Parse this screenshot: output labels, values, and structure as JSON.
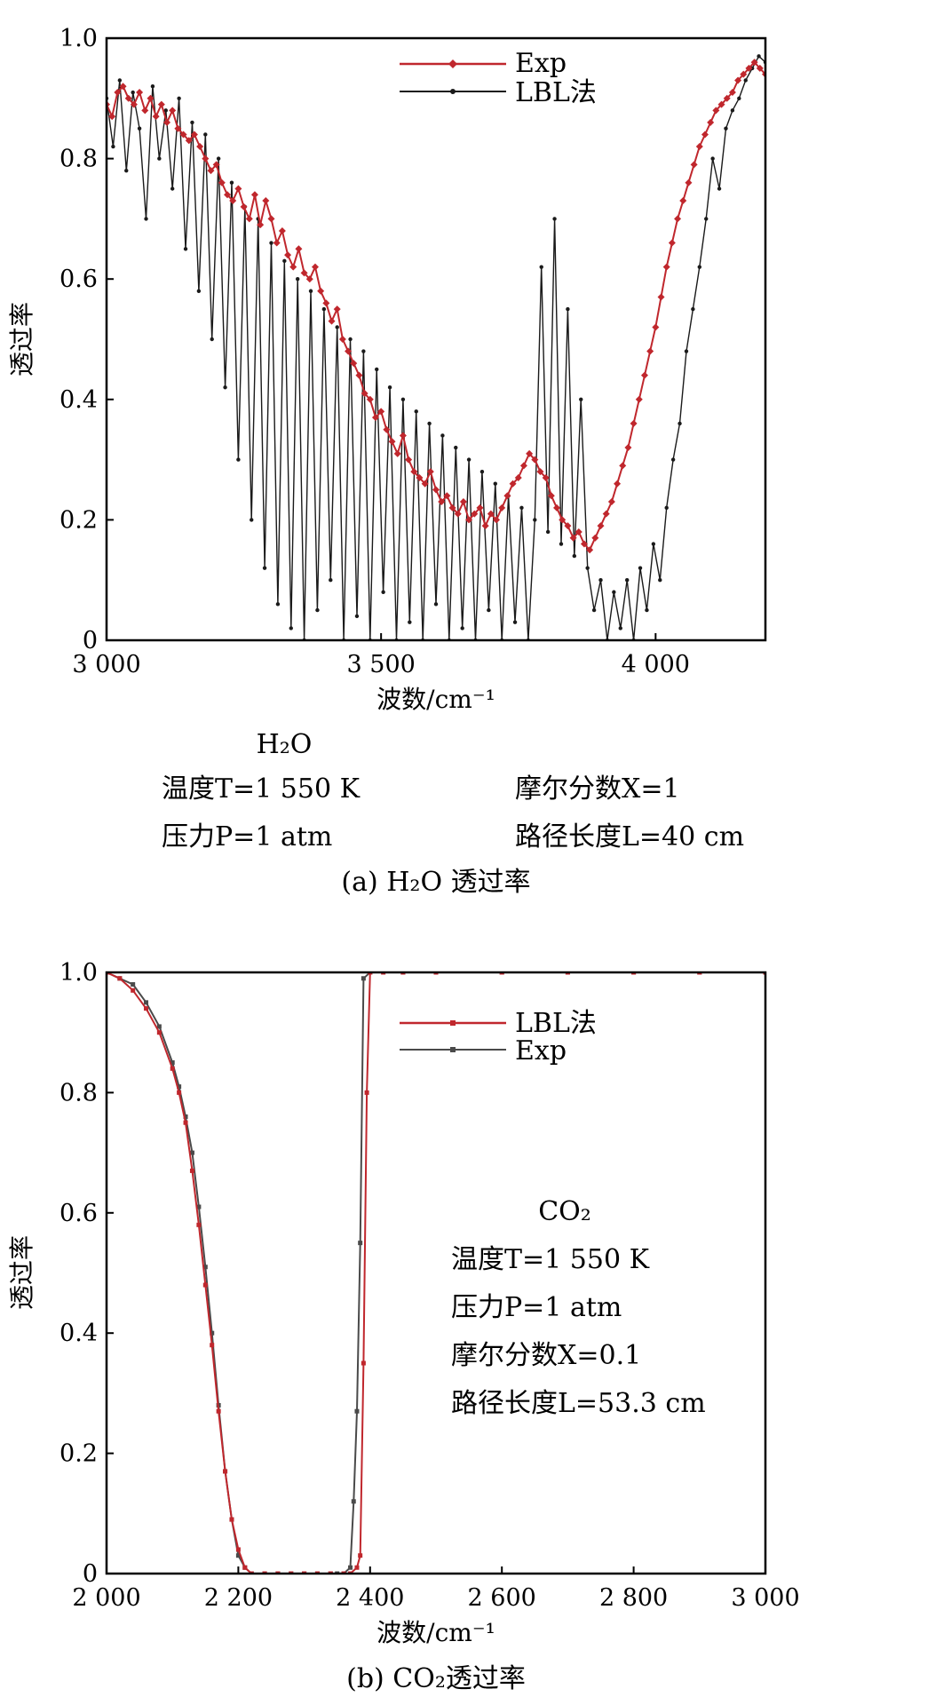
{
  "chart_data": [
    {
      "type": "line",
      "caption": "(a) H₂O 透过率",
      "xlabel": "波数/cm⁻¹",
      "ylabel": "透过率",
      "xlim": [
        3000,
        4200
      ],
      "ylim": [
        0,
        1.0
      ],
      "xticks": [
        "3 000",
        "3 500",
        "4 000"
      ],
      "yticks": [
        "0",
        "0.2",
        "0.4",
        "0.6",
        "0.8",
        "1.0"
      ],
      "legend_placement": "top-right",
      "conditions": {
        "species": "H₂O",
        "temperature": "温度T=1 550 K",
        "pressure": "压力P=1 atm",
        "mole_fraction": "摩尔分数X=1",
        "path_length": "路径长度L=40 cm"
      },
      "series": [
        {
          "name": "Exp",
          "color": "#c0272d",
          "marker": "diamond",
          "x": [
            3000,
            3010,
            3020,
            3030,
            3040,
            3050,
            3060,
            3070,
            3080,
            3090,
            3100,
            3110,
            3120,
            3130,
            3140,
            3150,
            3160,
            3170,
            3180,
            3190,
            3200,
            3210,
            3220,
            3230,
            3240,
            3250,
            3260,
            3270,
            3280,
            3290,
            3300,
            3310,
            3320,
            3330,
            3340,
            3350,
            3360,
            3370,
            3380,
            3390,
            3400,
            3410,
            3420,
            3430,
            3440,
            3450,
            3460,
            3470,
            3480,
            3490,
            3500,
            3510,
            3520,
            3530,
            3540,
            3550,
            3560,
            3570,
            3580,
            3590,
            3600,
            3610,
            3620,
            3630,
            3640,
            3650,
            3660,
            3670,
            3680,
            3690,
            3700,
            3710,
            3720,
            3730,
            3740,
            3750,
            3760,
            3770,
            3780,
            3790,
            3800,
            3810,
            3820,
            3830,
            3840,
            3850,
            3860,
            3870,
            3880,
            3890,
            3900,
            3910,
            3920,
            3930,
            3940,
            3950,
            3960,
            3970,
            3980,
            3990,
            4000,
            4010,
            4020,
            4030,
            4040,
            4050,
            4060,
            4070,
            4080,
            4090,
            4100,
            4110,
            4120,
            4130,
            4140,
            4150,
            4160,
            4170,
            4180,
            4190,
            4200
          ],
          "y": [
            0.89,
            0.87,
            0.91,
            0.92,
            0.9,
            0.89,
            0.91,
            0.88,
            0.9,
            0.87,
            0.89,
            0.86,
            0.88,
            0.85,
            0.84,
            0.83,
            0.84,
            0.82,
            0.8,
            0.78,
            0.79,
            0.76,
            0.74,
            0.73,
            0.75,
            0.72,
            0.7,
            0.74,
            0.69,
            0.73,
            0.7,
            0.66,
            0.68,
            0.64,
            0.62,
            0.65,
            0.61,
            0.6,
            0.62,
            0.58,
            0.56,
            0.53,
            0.55,
            0.5,
            0.48,
            0.46,
            0.44,
            0.41,
            0.4,
            0.37,
            0.38,
            0.35,
            0.33,
            0.31,
            0.34,
            0.3,
            0.28,
            0.27,
            0.26,
            0.28,
            0.25,
            0.23,
            0.24,
            0.22,
            0.21,
            0.23,
            0.2,
            0.21,
            0.22,
            0.19,
            0.21,
            0.2,
            0.22,
            0.24,
            0.26,
            0.27,
            0.29,
            0.31,
            0.3,
            0.28,
            0.27,
            0.24,
            0.22,
            0.2,
            0.19,
            0.17,
            0.18,
            0.16,
            0.15,
            0.17,
            0.19,
            0.21,
            0.23,
            0.26,
            0.29,
            0.32,
            0.36,
            0.4,
            0.44,
            0.48,
            0.52,
            0.57,
            0.62,
            0.66,
            0.7,
            0.73,
            0.76,
            0.79,
            0.82,
            0.84,
            0.86,
            0.88,
            0.89,
            0.9,
            0.91,
            0.93,
            0.94,
            0.95,
            0.96,
            0.95,
            0.94
          ]
        },
        {
          "name": "LBL法",
          "color": "#1a1a1a",
          "marker": "dot",
          "x": [
            3000,
            3012,
            3024,
            3036,
            3048,
            3060,
            3072,
            3084,
            3096,
            3108,
            3120,
            3132,
            3144,
            3156,
            3168,
            3180,
            3192,
            3204,
            3216,
            3228,
            3240,
            3252,
            3264,
            3276,
            3288,
            3300,
            3312,
            3324,
            3336,
            3348,
            3360,
            3372,
            3384,
            3396,
            3408,
            3420,
            3432,
            3444,
            3456,
            3468,
            3480,
            3492,
            3504,
            3516,
            3528,
            3540,
            3552,
            3564,
            3576,
            3588,
            3600,
            3612,
            3624,
            3636,
            3648,
            3660,
            3672,
            3684,
            3696,
            3708,
            3720,
            3732,
            3744,
            3756,
            3768,
            3780,
            3792,
            3804,
            3816,
            3828,
            3840,
            3852,
            3864,
            3876,
            3888,
            3900,
            3912,
            3924,
            3936,
            3948,
            3960,
            3972,
            3984,
            3996,
            4008,
            4020,
            4032,
            4044,
            4056,
            4068,
            4080,
            4092,
            4104,
            4116,
            4128,
            4140,
            4152,
            4164,
            4176,
            4188,
            4200
          ],
          "y": [
            0.9,
            0.82,
            0.93,
            0.78,
            0.91,
            0.85,
            0.7,
            0.92,
            0.8,
            0.88,
            0.75,
            0.9,
            0.65,
            0.86,
            0.58,
            0.84,
            0.5,
            0.8,
            0.42,
            0.76,
            0.3,
            0.72,
            0.2,
            0.7,
            0.12,
            0.66,
            0.06,
            0.63,
            0.02,
            0.6,
            0.0,
            0.58,
            0.05,
            0.55,
            0.1,
            0.52,
            0.0,
            0.5,
            0.04,
            0.48,
            0.0,
            0.45,
            0.08,
            0.42,
            0.0,
            0.4,
            0.03,
            0.38,
            0.0,
            0.36,
            0.06,
            0.34,
            0.0,
            0.32,
            0.02,
            0.3,
            0.0,
            0.28,
            0.05,
            0.26,
            0.0,
            0.24,
            0.03,
            0.22,
            0.0,
            0.2,
            0.62,
            0.18,
            0.7,
            0.16,
            0.55,
            0.14,
            0.4,
            0.12,
            0.05,
            0.1,
            0.0,
            0.08,
            0.02,
            0.1,
            0.0,
            0.12,
            0.05,
            0.16,
            0.1,
            0.22,
            0.3,
            0.36,
            0.48,
            0.55,
            0.62,
            0.7,
            0.8,
            0.75,
            0.85,
            0.88,
            0.9,
            0.93,
            0.95,
            0.97,
            0.96
          ]
        }
      ]
    },
    {
      "type": "line",
      "caption": "(b) CO₂透过率",
      "xlabel": "波数/cm⁻¹",
      "ylabel": "透过率",
      "xlim": [
        2000,
        3000
      ],
      "ylim": [
        0,
        1.0
      ],
      "xticks": [
        "2 000",
        "2 200",
        "2 400",
        "2 600",
        "2 800",
        "3 000"
      ],
      "yticks": [
        "0",
        "0.2",
        "0.4",
        "0.6",
        "0.8",
        "1.0"
      ],
      "legend_placement": "top-right",
      "conditions": {
        "species": "CO₂",
        "temperature": "温度T=1 550 K",
        "pressure": "压力P=1 atm",
        "mole_fraction": "摩尔分数X=0.1",
        "path_length": "路径长度L=53.3 cm"
      },
      "series": [
        {
          "name": "LBL法",
          "color": "#c0272d",
          "marker": "square",
          "x": [
            2000,
            2020,
            2040,
            2060,
            2080,
            2100,
            2110,
            2120,
            2130,
            2140,
            2150,
            2160,
            2170,
            2180,
            2190,
            2200,
            2210,
            2220,
            2240,
            2260,
            2280,
            2300,
            2320,
            2340,
            2360,
            2370,
            2380,
            2385,
            2390,
            2395,
            2400,
            2420,
            2450,
            2500,
            2600,
            2700,
            2800,
            2900,
            3000
          ],
          "y": [
            1.0,
            0.99,
            0.97,
            0.94,
            0.9,
            0.84,
            0.8,
            0.75,
            0.67,
            0.58,
            0.48,
            0.38,
            0.27,
            0.17,
            0.09,
            0.04,
            0.01,
            0.0,
            0.0,
            0.0,
            0.0,
            0.0,
            0.0,
            0.0,
            0.0,
            0.0,
            0.01,
            0.03,
            0.35,
            0.8,
            1.0,
            1.0,
            1.0,
            1.0,
            1.0,
            1.0,
            1.0,
            1.0,
            1.0
          ]
        },
        {
          "name": "Exp",
          "color": "#4a4a4a",
          "marker": "square",
          "x": [
            2000,
            2020,
            2040,
            2060,
            2080,
            2100,
            2110,
            2120,
            2130,
            2140,
            2150,
            2160,
            2170,
            2180,
            2190,
            2200,
            2210,
            2220,
            2240,
            2260,
            2280,
            2300,
            2320,
            2340,
            2350,
            2360,
            2370,
            2375,
            2380,
            2385,
            2390,
            2400,
            2450,
            2500,
            2600,
            2700,
            2800,
            2900,
            3000
          ],
          "y": [
            1.0,
            0.99,
            0.98,
            0.95,
            0.91,
            0.85,
            0.81,
            0.76,
            0.7,
            0.61,
            0.51,
            0.4,
            0.28,
            0.17,
            0.09,
            0.03,
            0.01,
            0.0,
            0.0,
            0.0,
            0.0,
            0.0,
            0.0,
            0.0,
            0.0,
            0.0,
            0.01,
            0.12,
            0.27,
            0.55,
            0.99,
            1.0,
            1.0,
            1.0,
            1.0,
            1.0,
            1.0,
            1.0,
            1.0
          ]
        }
      ]
    }
  ]
}
